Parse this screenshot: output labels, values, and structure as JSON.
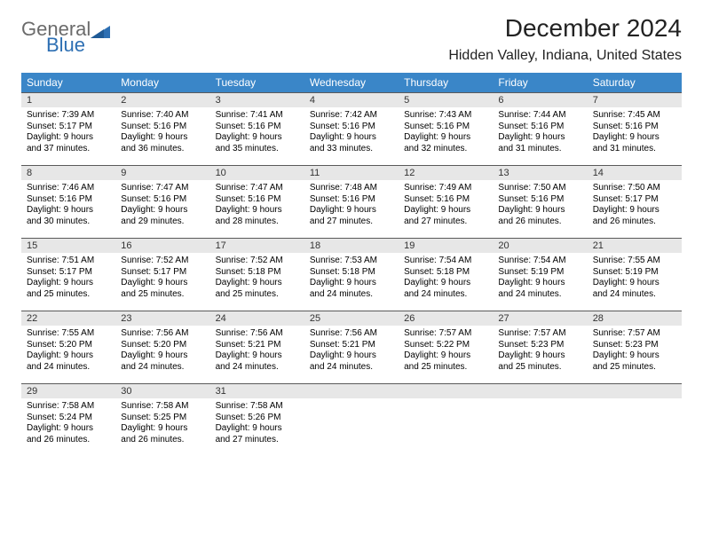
{
  "brand": {
    "line1": "General",
    "line2": "Blue",
    "shape_color": "#2d6fb3",
    "line1_color": "#6b6b6b"
  },
  "title": "December 2024",
  "location": "Hidden Valley, Indiana, United States",
  "header_bg": "#3a86c8",
  "daynum_bg": "#e7e7e7",
  "border_color": "#5a5a5a",
  "weekdays": [
    "Sunday",
    "Monday",
    "Tuesday",
    "Wednesday",
    "Thursday",
    "Friday",
    "Saturday"
  ],
  "weeks": [
    [
      {
        "n": "1",
        "sr": "7:39 AM",
        "ss": "5:17 PM",
        "dl": "9 hours and 37 minutes."
      },
      {
        "n": "2",
        "sr": "7:40 AM",
        "ss": "5:16 PM",
        "dl": "9 hours and 36 minutes."
      },
      {
        "n": "3",
        "sr": "7:41 AM",
        "ss": "5:16 PM",
        "dl": "9 hours and 35 minutes."
      },
      {
        "n": "4",
        "sr": "7:42 AM",
        "ss": "5:16 PM",
        "dl": "9 hours and 33 minutes."
      },
      {
        "n": "5",
        "sr": "7:43 AM",
        "ss": "5:16 PM",
        "dl": "9 hours and 32 minutes."
      },
      {
        "n": "6",
        "sr": "7:44 AM",
        "ss": "5:16 PM",
        "dl": "9 hours and 31 minutes."
      },
      {
        "n": "7",
        "sr": "7:45 AM",
        "ss": "5:16 PM",
        "dl": "9 hours and 31 minutes."
      }
    ],
    [
      {
        "n": "8",
        "sr": "7:46 AM",
        "ss": "5:16 PM",
        "dl": "9 hours and 30 minutes."
      },
      {
        "n": "9",
        "sr": "7:47 AM",
        "ss": "5:16 PM",
        "dl": "9 hours and 29 minutes."
      },
      {
        "n": "10",
        "sr": "7:47 AM",
        "ss": "5:16 PM",
        "dl": "9 hours and 28 minutes."
      },
      {
        "n": "11",
        "sr": "7:48 AM",
        "ss": "5:16 PM",
        "dl": "9 hours and 27 minutes."
      },
      {
        "n": "12",
        "sr": "7:49 AM",
        "ss": "5:16 PM",
        "dl": "9 hours and 27 minutes."
      },
      {
        "n": "13",
        "sr": "7:50 AM",
        "ss": "5:16 PM",
        "dl": "9 hours and 26 minutes."
      },
      {
        "n": "14",
        "sr": "7:50 AM",
        "ss": "5:17 PM",
        "dl": "9 hours and 26 minutes."
      }
    ],
    [
      {
        "n": "15",
        "sr": "7:51 AM",
        "ss": "5:17 PM",
        "dl": "9 hours and 25 minutes."
      },
      {
        "n": "16",
        "sr": "7:52 AM",
        "ss": "5:17 PM",
        "dl": "9 hours and 25 minutes."
      },
      {
        "n": "17",
        "sr": "7:52 AM",
        "ss": "5:18 PM",
        "dl": "9 hours and 25 minutes."
      },
      {
        "n": "18",
        "sr": "7:53 AM",
        "ss": "5:18 PM",
        "dl": "9 hours and 24 minutes."
      },
      {
        "n": "19",
        "sr": "7:54 AM",
        "ss": "5:18 PM",
        "dl": "9 hours and 24 minutes."
      },
      {
        "n": "20",
        "sr": "7:54 AM",
        "ss": "5:19 PM",
        "dl": "9 hours and 24 minutes."
      },
      {
        "n": "21",
        "sr": "7:55 AM",
        "ss": "5:19 PM",
        "dl": "9 hours and 24 minutes."
      }
    ],
    [
      {
        "n": "22",
        "sr": "7:55 AM",
        "ss": "5:20 PM",
        "dl": "9 hours and 24 minutes."
      },
      {
        "n": "23",
        "sr": "7:56 AM",
        "ss": "5:20 PM",
        "dl": "9 hours and 24 minutes."
      },
      {
        "n": "24",
        "sr": "7:56 AM",
        "ss": "5:21 PM",
        "dl": "9 hours and 24 minutes."
      },
      {
        "n": "25",
        "sr": "7:56 AM",
        "ss": "5:21 PM",
        "dl": "9 hours and 24 minutes."
      },
      {
        "n": "26",
        "sr": "7:57 AM",
        "ss": "5:22 PM",
        "dl": "9 hours and 25 minutes."
      },
      {
        "n": "27",
        "sr": "7:57 AM",
        "ss": "5:23 PM",
        "dl": "9 hours and 25 minutes."
      },
      {
        "n": "28",
        "sr": "7:57 AM",
        "ss": "5:23 PM",
        "dl": "9 hours and 25 minutes."
      }
    ],
    [
      {
        "n": "29",
        "sr": "7:58 AM",
        "ss": "5:24 PM",
        "dl": "9 hours and 26 minutes."
      },
      {
        "n": "30",
        "sr": "7:58 AM",
        "ss": "5:25 PM",
        "dl": "9 hours and 26 minutes."
      },
      {
        "n": "31",
        "sr": "7:58 AM",
        "ss": "5:26 PM",
        "dl": "9 hours and 27 minutes."
      },
      null,
      null,
      null,
      null
    ]
  ],
  "labels": {
    "sunrise": "Sunrise:",
    "sunset": "Sunset:",
    "daylight": "Daylight:"
  }
}
